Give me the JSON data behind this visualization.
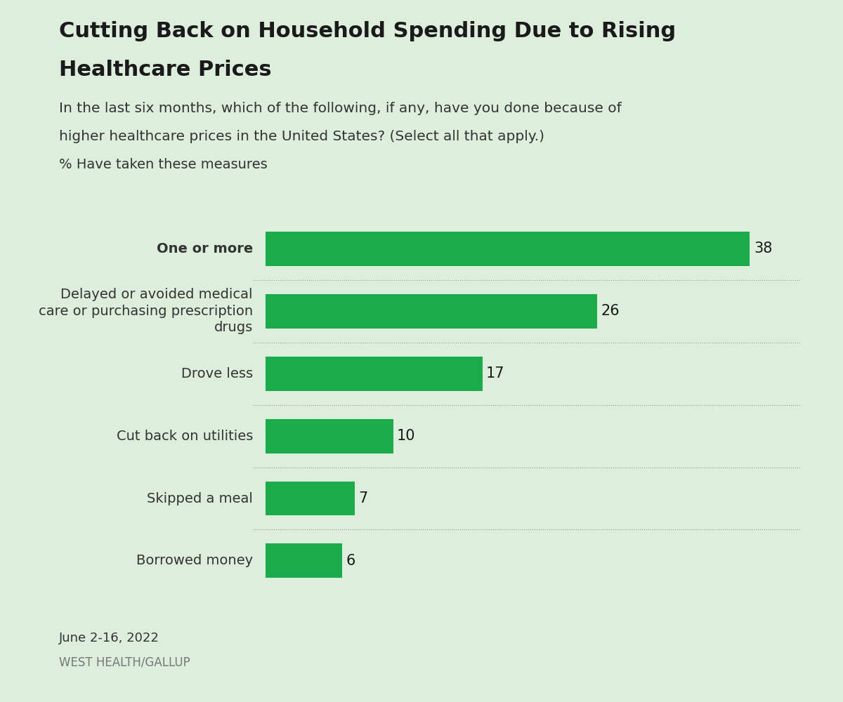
{
  "title_line1": "Cutting Back on Household Spending Due to Rising",
  "title_line2": "Healthcare Prices",
  "subtitle_line1": "In the last six months, which of the following, if any, have you done because of",
  "subtitle_line2": "higher healthcare prices in the United States? (Select all that apply.)",
  "measure_label": "% Have taken these measures",
  "categories": [
    "One or more",
    "Delayed or avoided medical\ncare or purchasing prescription\ndrugs",
    "Drove less",
    "Cut back on utilities",
    "Skipped a meal",
    "Borrowed money"
  ],
  "values": [
    38,
    26,
    17,
    10,
    7,
    6
  ],
  "bar_color": "#1aab4b",
  "background_color": "#ddeedd",
  "text_color": "#1a1a1a",
  "label_color": "#333333",
  "source_date": "June 2-16, 2022",
  "source_org": "WEST HEALTH/GALLUP",
  "bar_label_color": "#1a1a1a",
  "bold_indices": [
    0
  ],
  "x_max": 42,
  "bar_height": 0.55,
  "figsize": [
    12.0,
    10.0
  ],
  "dpi": 100
}
